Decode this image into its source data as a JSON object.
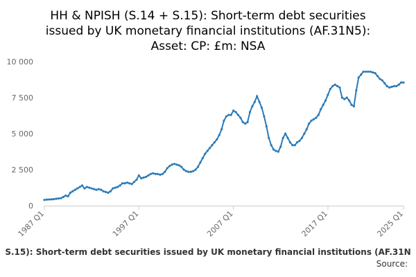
{
  "chart_data": {
    "type": "line",
    "title": [
      "HH & NPISH (S.14 + S.15): Short-term debt securities",
      "issued by UK monetary financial institutions (AF.31N5):",
      "Asset: CP: £m: NSA"
    ],
    "footer": "S.15): Short-term debt securities issued by UK monetary financial institutions (AF.31N",
    "source": "Source:",
    "color": "#2a7ab8",
    "ylim": [
      0,
      10000
    ],
    "yticks": [
      {
        "value": 0,
        "label": "0"
      },
      {
        "value": 2500,
        "label": "2 500"
      },
      {
        "value": 5000,
        "label": "5 000"
      },
      {
        "value": 7500,
        "label": "7 500"
      },
      {
        "value": 10000,
        "label": "10 000"
      }
    ],
    "grid": false,
    "categories": [
      "1987 Q1",
      null,
      null,
      null,
      null,
      null,
      null,
      null,
      null,
      null,
      null,
      null,
      null,
      null,
      null,
      null,
      null,
      null,
      null,
      null,
      null,
      null,
      null,
      null,
      null,
      null,
      null,
      null,
      null,
      null,
      null,
      null,
      null,
      null,
      null,
      null,
      null,
      null,
      null,
      null,
      "1997 Q1",
      null,
      null,
      null,
      null,
      null,
      null,
      null,
      null,
      null,
      null,
      null,
      null,
      null,
      null,
      null,
      null,
      null,
      null,
      null,
      null,
      null,
      null,
      null,
      null,
      null,
      null,
      null,
      null,
      null,
      null,
      null,
      null,
      null,
      null,
      null,
      null,
      null,
      null,
      null,
      "2007 Q1",
      null,
      null,
      null,
      null,
      null,
      null,
      null,
      null,
      null,
      null,
      null,
      null,
      null,
      null,
      null,
      null,
      null,
      null,
      null,
      null,
      null,
      null,
      null,
      null,
      null,
      null,
      null,
      null,
      null,
      null,
      null,
      null,
      null,
      null,
      null,
      null,
      null,
      null,
      null,
      "2017 Q1",
      null,
      null,
      null,
      null,
      null,
      null,
      null,
      null,
      null,
      null,
      null,
      null,
      null,
      null,
      null,
      null,
      null,
      null,
      null,
      null,
      null,
      null,
      null,
      null,
      null,
      null,
      null,
      null,
      null,
      null,
      null,
      "2025 Q1"
    ],
    "values": [
      400,
      420,
      430,
      440,
      450,
      480,
      500,
      520,
      600,
      700,
      650,
      900,
      1000,
      1100,
      1200,
      1300,
      1400,
      1200,
      1300,
      1250,
      1200,
      1150,
      1100,
      1150,
      1100,
      1000,
      950,
      900,
      1000,
      1200,
      1250,
      1300,
      1400,
      1550,
      1550,
      1600,
      1550,
      1500,
      1650,
      1800,
      2100,
      1900,
      1950,
      2000,
      2100,
      2200,
      2250,
      2200,
      2200,
      2150,
      2200,
      2350,
      2600,
      2750,
      2850,
      2900,
      2850,
      2800,
      2700,
      2500,
      2400,
      2350,
      2350,
      2400,
      2500,
      2700,
      3000,
      3300,
      3600,
      3800,
      4000,
      4200,
      4400,
      4600,
      4900,
      5300,
      5900,
      6200,
      6300,
      6300,
      6600,
      6500,
      6300,
      6100,
      5800,
      5700,
      5800,
      6500,
      6900,
      7200,
      7600,
      7200,
      6800,
      6200,
      5500,
      4700,
      4200,
      3900,
      3800,
      3750,
      4100,
      4700,
      5000,
      4700,
      4400,
      4200,
      4200,
      4400,
      4500,
      4700,
      5000,
      5300,
      5700,
      5900,
      6000,
      6100,
      6300,
      6700,
      7000,
      7300,
      7700,
      8100,
      8300,
      8400,
      8300,
      8200,
      7500,
      7400,
      7500,
      7300,
      7000,
      6900,
      8000,
      8900,
      9100,
      9300,
      9300,
      9300,
      9300,
      9250,
      9200,
      9000,
      8800,
      8700,
      8500,
      8300,
      8200,
      8250,
      8300,
      8300,
      8400,
      8550,
      8550
    ]
  }
}
